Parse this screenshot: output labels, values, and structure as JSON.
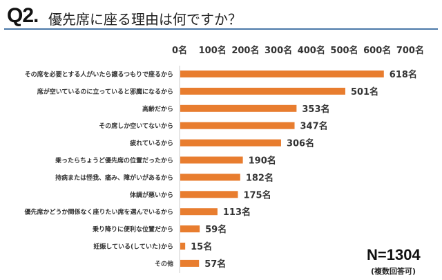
{
  "header": {
    "question_number": "Q2.",
    "title": "優先席に座る理由は何ですか？"
  },
  "chart_data": {
    "type": "bar",
    "orientation": "horizontal",
    "title": "優先席に座る理由は何ですか？",
    "categories": [
      "その席を必要とする人がいたら譲るつもりで座るから",
      "席が空いているのに立っていると邪魔になるから",
      "高齢だから",
      "その席しか空いてないから",
      "疲れているから",
      "乗ったらちょうど優先席の位置だったから",
      "持病または怪我、痛み、障がいがあるから",
      "体調が悪いから",
      "優先席かどうか関係なく座りたい席を選んでいるから",
      "乗り降りに便利な位置だから",
      "妊娠している(していた)から",
      "その他"
    ],
    "values": [
      618,
      501,
      353,
      347,
      306,
      190,
      182,
      175,
      113,
      59,
      15,
      57
    ],
    "value_suffix": "名",
    "tick_labels": [
      "0名",
      "100名",
      "200名",
      "300名",
      "400名",
      "500名",
      "600名",
      "700名"
    ],
    "xlim": [
      0,
      700
    ],
    "axis_position": "top",
    "grid": false,
    "bar_color": "#e87d2f"
  },
  "footer": {
    "sample_size": "N=1304",
    "note": "(複数回答可)"
  }
}
